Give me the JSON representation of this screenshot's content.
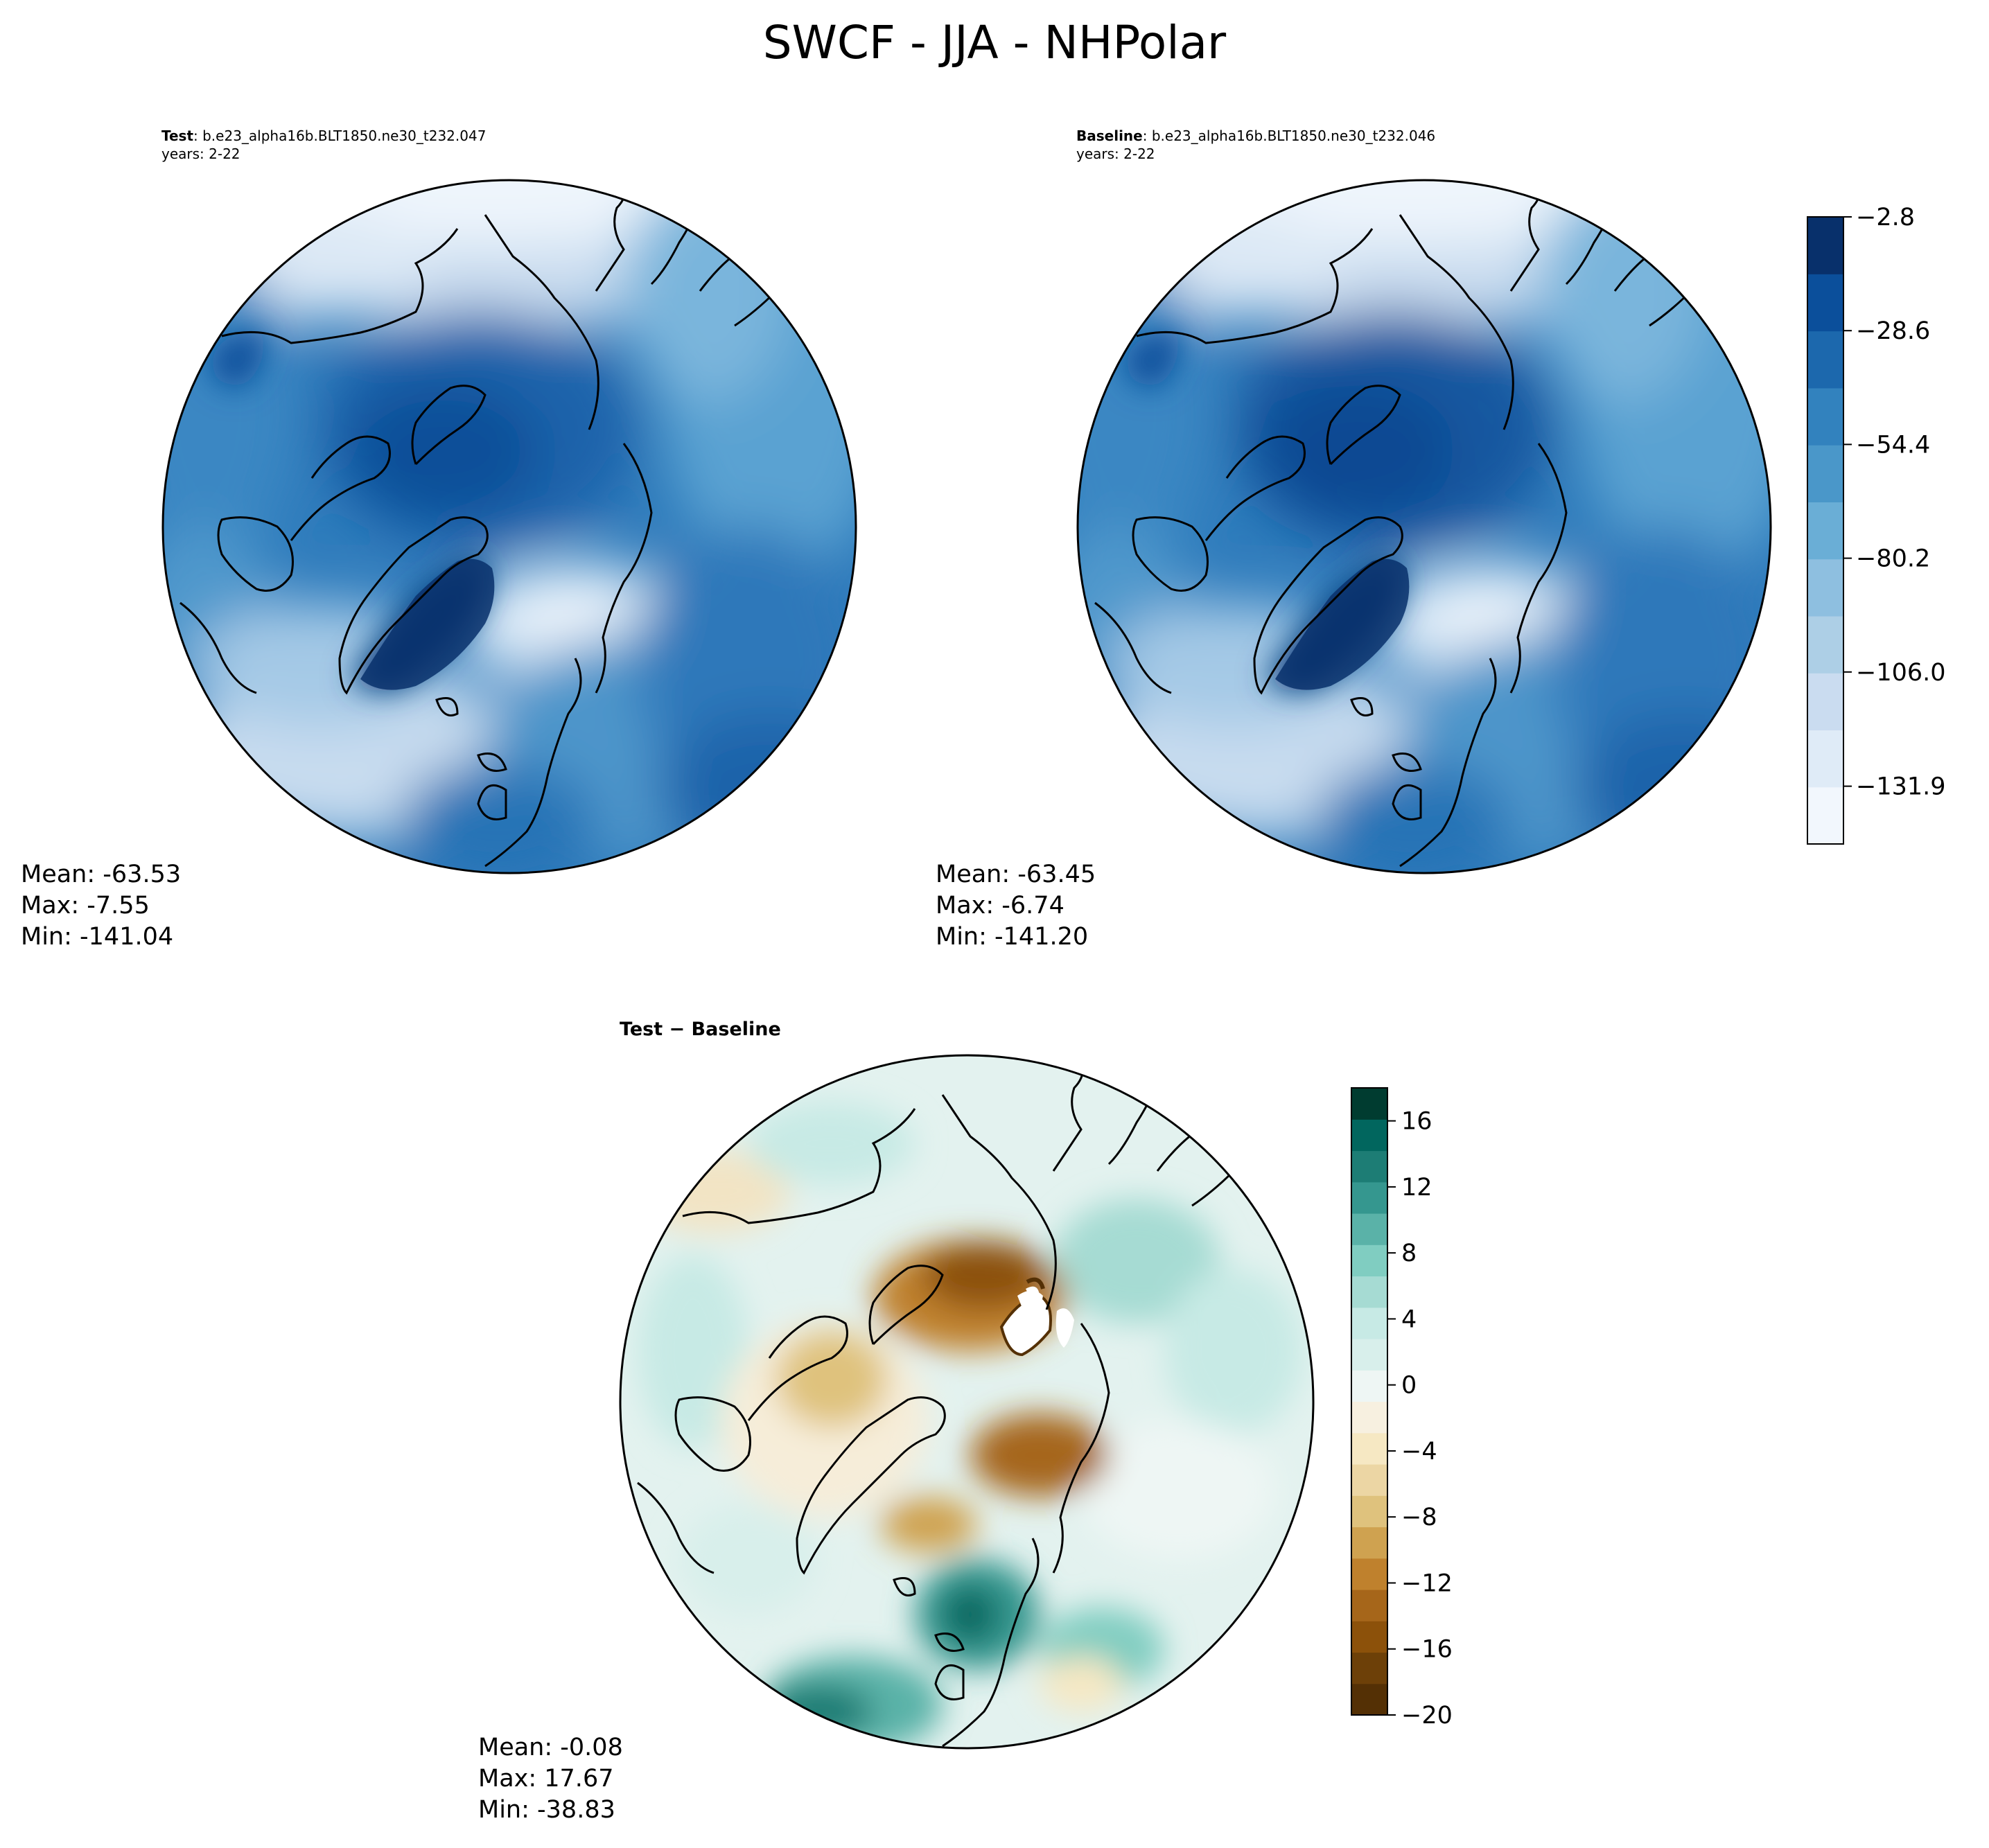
{
  "figure_title": "SWCF - JJA - NHPolar",
  "chart_data": [
    {
      "type": "heatmap",
      "id": "test",
      "projection": "north-polar-stereographic",
      "title_bold": "Test",
      "title_rest": ": b.e23_alpha16b.BLT1850.ne30_t232.047",
      "subtitle": "years: 2-22",
      "colormap": "Blues_r",
      "stats": {
        "mean": "Mean: -63.53",
        "max": "Max: -7.55",
        "min": "Min: -141.04"
      }
    },
    {
      "type": "heatmap",
      "id": "baseline",
      "projection": "north-polar-stereographic",
      "title_bold": "Baseline",
      "title_rest": ": b.e23_alpha16b.BLT1850.ne30_t232.046",
      "subtitle": "years: 2-22",
      "colormap": "Blues_r",
      "stats": {
        "mean": "Mean: -63.45",
        "max": "Max: -6.74",
        "min": "Min: -141.20"
      }
    },
    {
      "type": "heatmap",
      "id": "difference",
      "projection": "north-polar-stereographic",
      "title": "Test − Baseline",
      "colormap": "BrBG",
      "stats": {
        "mean": "Mean: -0.08",
        "max": "Max: 17.67",
        "min": "Min: -38.83"
      }
    }
  ],
  "colorbars": {
    "main": {
      "range": [
        -145,
        -2.8
      ],
      "levels": 11,
      "tick_labels": [
        "−2.8",
        "−28.6",
        "−54.4",
        "−80.2",
        "−106.0",
        "−131.9"
      ],
      "tick_values": [
        -2.8,
        -28.6,
        -54.4,
        -80.2,
        -106.0,
        -131.9
      ],
      "colors": [
        "#f2f7fd",
        "#dfebf7",
        "#cadcf0",
        "#adcfe6",
        "#8ebfe0",
        "#6aaed6",
        "#4a97c9",
        "#3282be",
        "#1c68ad",
        "#0b4f9b",
        "#08306b"
      ]
    },
    "diff": {
      "range": [
        -20,
        18
      ],
      "tick_labels": [
        "16",
        "12",
        "8",
        "4",
        "0",
        "−4",
        "−8",
        "−12",
        "−16",
        "−20"
      ],
      "tick_values": [
        16,
        12,
        8,
        4,
        0,
        -4,
        -8,
        -12,
        -16,
        -20
      ],
      "level_step": 2,
      "colors_low_to_high": [
        "#543005",
        "#6d4008",
        "#8c510a",
        "#a6661a",
        "#bf812d",
        "#cfa250",
        "#dfc27d",
        "#ecd6a4",
        "#f6e8c3",
        "#f7f0e0",
        "#eef6f4",
        "#d8efeb",
        "#c7eae5",
        "#a6dbd3",
        "#80cdc1",
        "#5ab2a8",
        "#35978f",
        "#1d7d75",
        "#01665e",
        "#003c30"
      ]
    }
  }
}
